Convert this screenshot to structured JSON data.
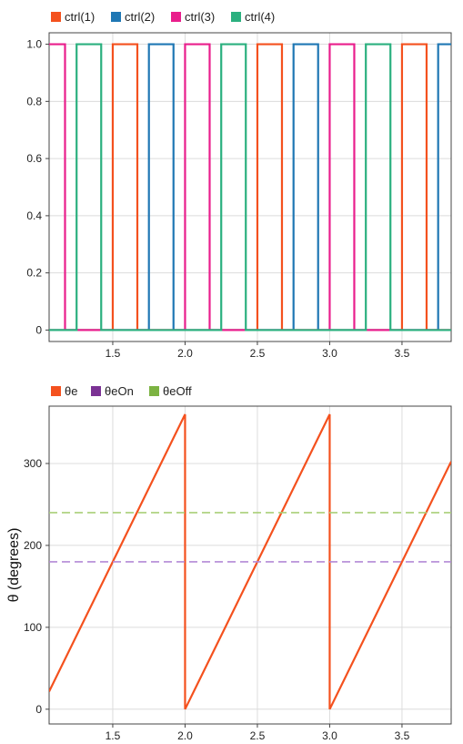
{
  "chart_data": [
    {
      "type": "line",
      "title": "",
      "xlabel": "",
      "ylabel": "",
      "xlim": [
        1.06,
        3.84
      ],
      "ylim": [
        -0.04,
        1.04
      ],
      "xticks": [
        1.5,
        2.0,
        2.5,
        3.0,
        3.5
      ],
      "yticks": [
        0,
        0.2,
        0.4,
        0.6,
        0.8,
        1.0
      ],
      "ytick_labels": [
        "0",
        "0.2",
        "0.4",
        "0.6",
        "0.8",
        "1.0"
      ],
      "xtick_labels": [
        "1.5",
        "2.0",
        "2.5",
        "3.0",
        "3.5"
      ],
      "grid": true,
      "legend_position": "top-left",
      "series": [
        {
          "name": "ctrl(1)",
          "color": "#f4511e",
          "on_intervals": [
            [
              1.5,
              1.67
            ],
            [
              2.5,
              2.67
            ],
            [
              3.5,
              3.67
            ]
          ]
        },
        {
          "name": "ctrl(2)",
          "color": "#1f77b4",
          "on_intervals": [
            [
              1.75,
              1.92
            ],
            [
              2.75,
              2.92
            ],
            [
              3.75,
              3.84
            ]
          ]
        },
        {
          "name": "ctrl(3)",
          "color": "#e91e8c",
          "on_intervals": [
            [
              1.06,
              1.17
            ],
            [
              2.0,
              2.17
            ],
            [
              3.0,
              3.17
            ]
          ]
        },
        {
          "name": "ctrl(4)",
          "color": "#2bb07f",
          "on_intervals": [
            [
              1.25,
              1.42
            ],
            [
              2.25,
              2.42
            ],
            [
              3.25,
              3.42
            ]
          ]
        }
      ]
    },
    {
      "type": "line",
      "title": "",
      "xlabel": "",
      "ylabel": "θ (degrees)",
      "xlim": [
        1.06,
        3.84
      ],
      "ylim": [
        -18,
        370
      ],
      "xticks": [
        1.5,
        2.0,
        2.5,
        3.0,
        3.5
      ],
      "yticks": [
        0,
        100,
        200,
        300
      ],
      "ytick_labels": [
        "0",
        "100",
        "200",
        "300"
      ],
      "xtick_labels": [
        "1.5",
        "2.0",
        "2.5",
        "3.0",
        "3.5"
      ],
      "grid": true,
      "legend_position": "top-left",
      "series": [
        {
          "name": "θe",
          "color": "#f4511e",
          "x": [
            1.06,
            2.0,
            2.0,
            3.0,
            3.0,
            3.84
          ],
          "y": [
            21.6,
            360,
            0,
            360,
            0,
            302.4
          ]
        },
        {
          "name": "θeOn",
          "color": "#7b3294",
          "line_color": "#b48ad6",
          "dashed": true,
          "x": [
            1.06,
            3.84
          ],
          "y": [
            180,
            180
          ]
        },
        {
          "name": "θeOff",
          "color": "#7cb342",
          "line_color": "#a9cf78",
          "dashed": true,
          "x": [
            1.06,
            3.84
          ],
          "y": [
            240,
            240
          ]
        }
      ]
    }
  ]
}
